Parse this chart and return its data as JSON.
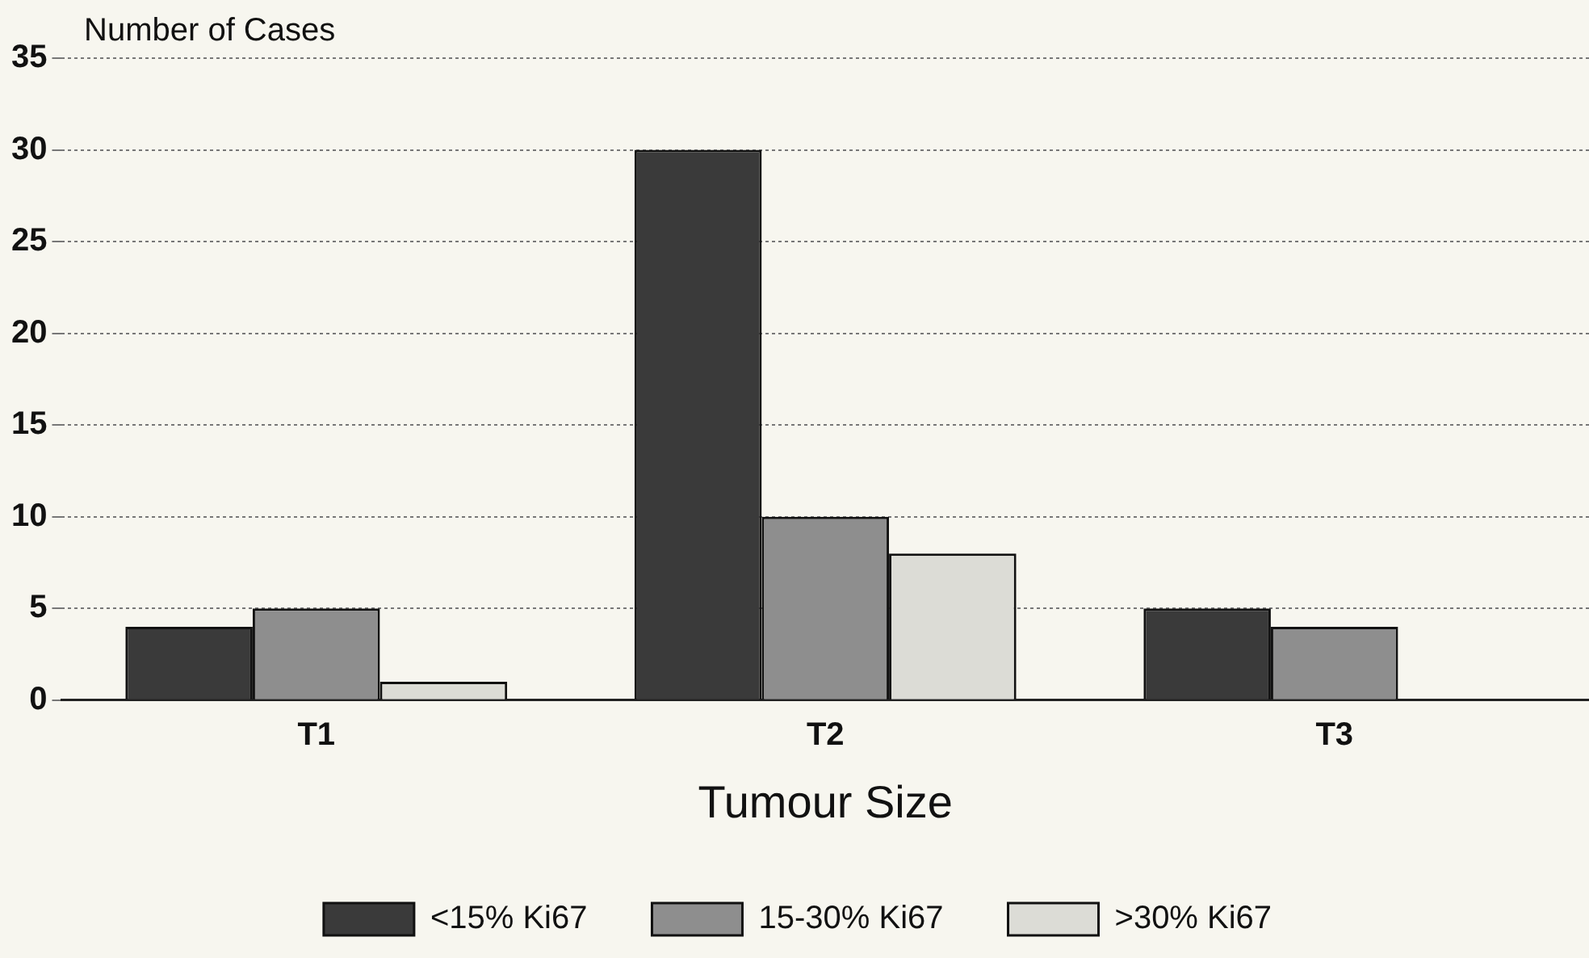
{
  "chart_data": {
    "type": "bar",
    "xlabel": "Tumour Size",
    "ylabel": "Number of Cases",
    "categories": [
      "T1",
      "T2",
      "T3"
    ],
    "series": [
      {
        "name": "<15% Ki67",
        "color": "#3a3a3a",
        "values": [
          4,
          30,
          5
        ]
      },
      {
        "name": "15-30% Ki67",
        "color": "#8e8e8e",
        "values": [
          5,
          10,
          4
        ]
      },
      {
        "name": ">30% Ki67",
        "color": "#dcdcd6",
        "values": [
          1,
          8,
          0
        ]
      }
    ],
    "ylim": [
      0,
      35
    ],
    "yticks": [
      0,
      5,
      10,
      15,
      20,
      25,
      30,
      35
    ],
    "grid": "y",
    "legend": "bottom"
  }
}
